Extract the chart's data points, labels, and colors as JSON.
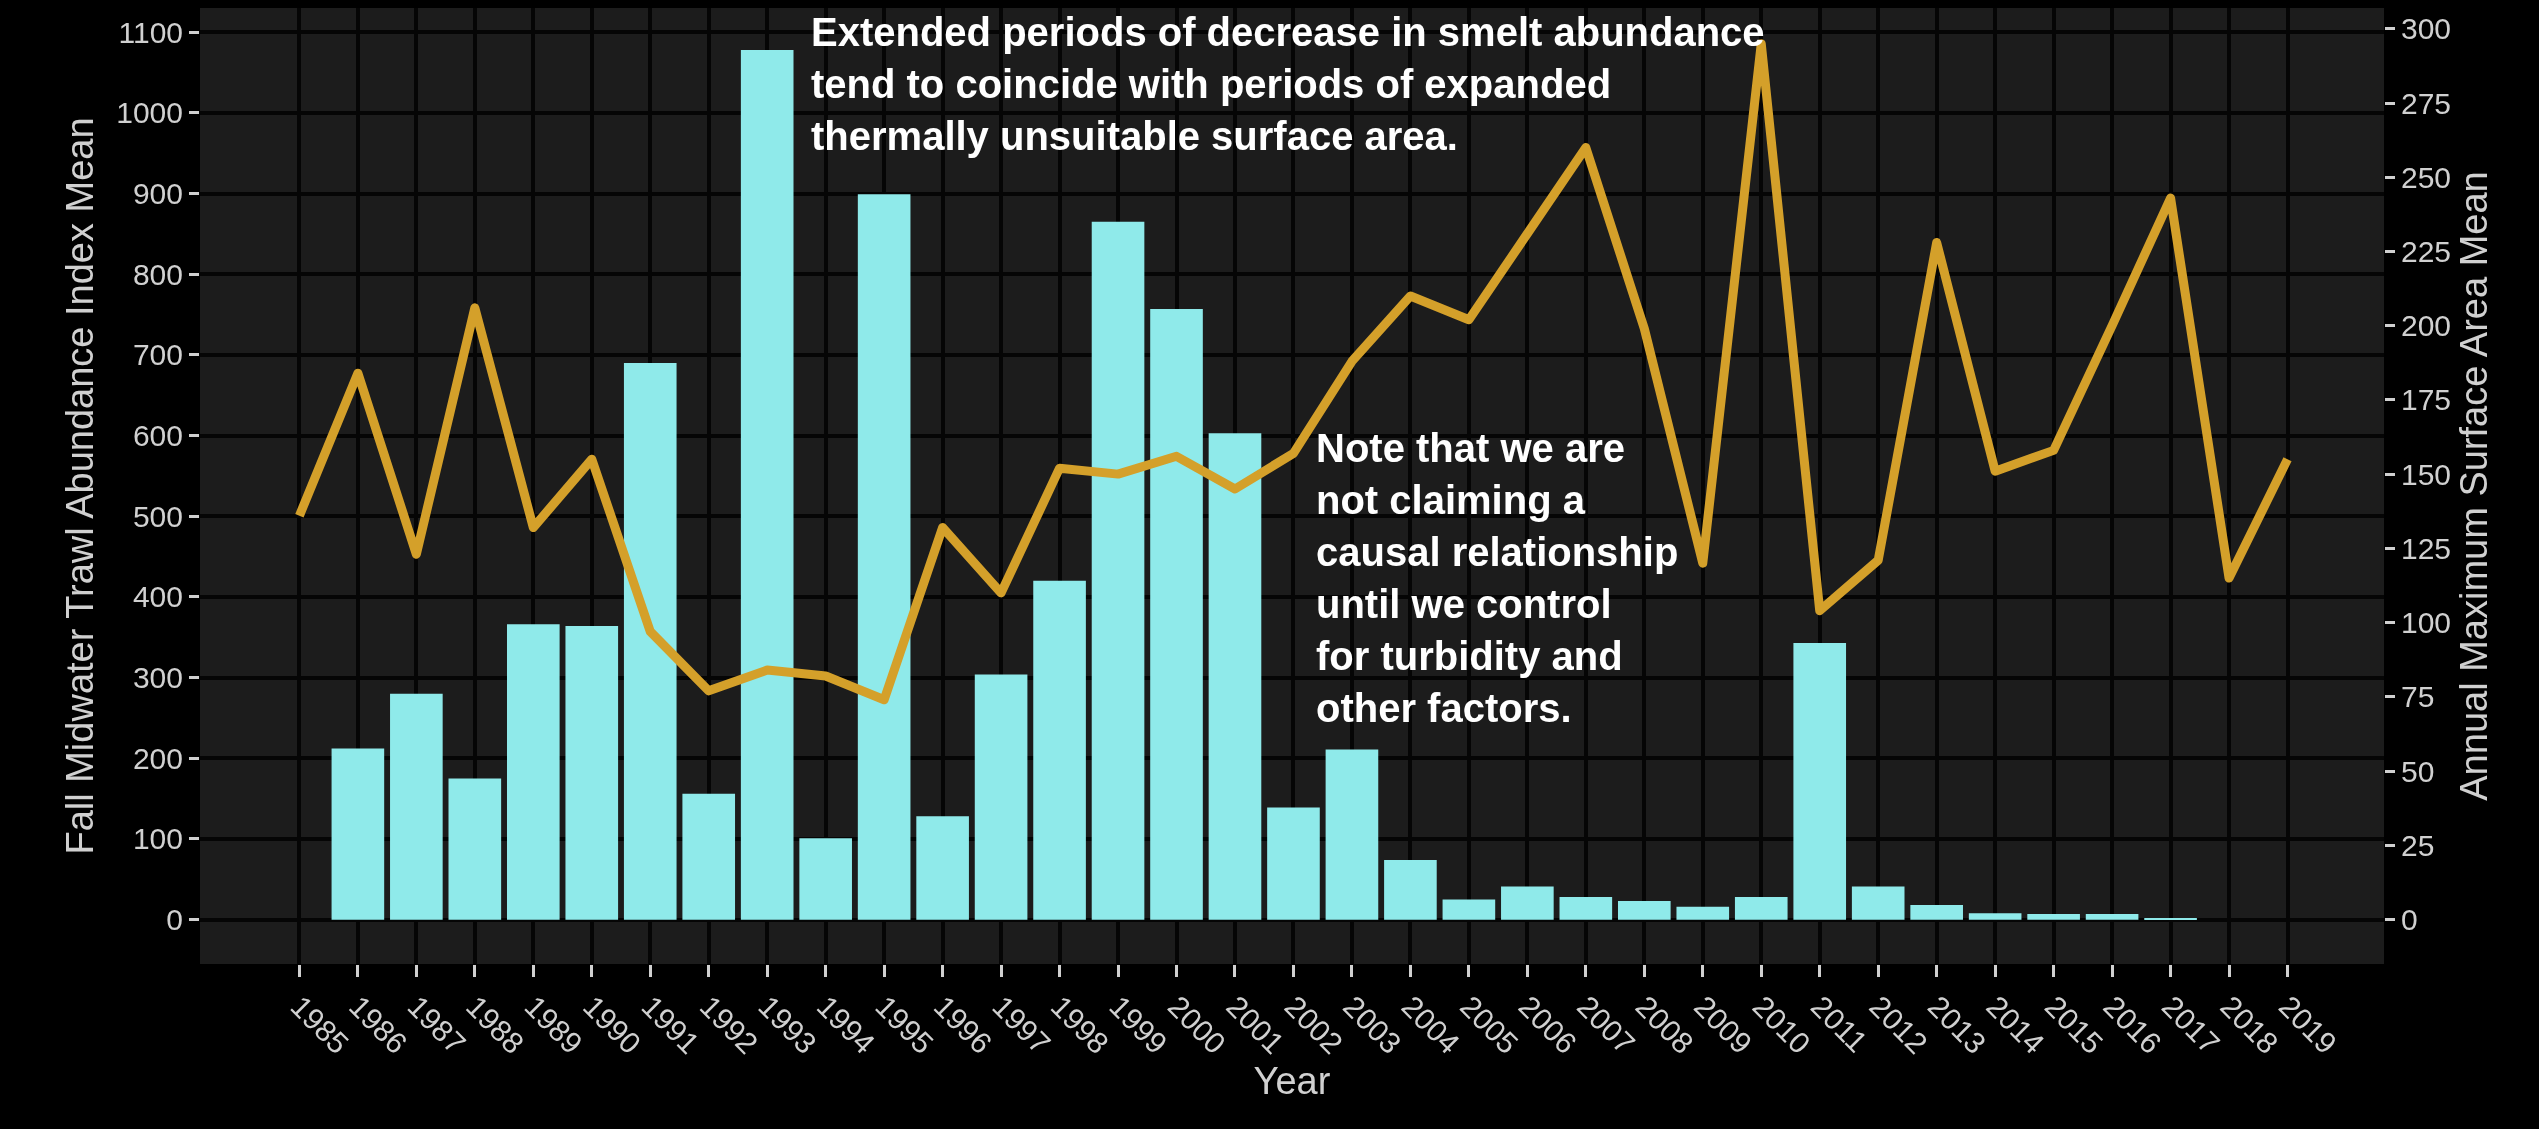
{
  "chart_data": {
    "type": "bar",
    "xlabel": "Year",
    "ylabel": "Fall Midwater Trawl Abundance Index Mean",
    "y2label": "Annual Maximum Surface Area Mean",
    "categories": [
      "1985",
      "1986",
      "1987",
      "1988",
      "1989",
      "1990",
      "1991",
      "1992",
      "1993",
      "1994",
      "1995",
      "1996",
      "1997",
      "1998",
      "1999",
      "2000",
      "2001",
      "2002",
      "2003",
      "2004",
      "2005",
      "2006",
      "2007",
      "2008",
      "2009",
      "2010",
      "2011",
      "2012",
      "2013",
      "2014",
      "2015",
      "2016",
      "2017",
      "2018",
      "2019"
    ],
    "series": [
      {
        "color": "#8feaea",
        "values": [
          null,
          212,
          280,
          175,
          366,
          364,
          690,
          156,
          1078,
          101,
          899,
          128,
          304,
          420,
          865,
          757,
          603,
          139,
          211,
          74,
          25,
          41,
          28,
          23,
          16,
          28,
          343,
          41,
          18,
          8,
          7,
          7,
          1,
          null,
          null
        ]
      },
      {
        "type": "line",
        "axis": "y2",
        "color": "#d4a02a",
        "values": [
          136,
          184,
          123,
          206,
          132,
          155,
          97,
          77,
          84,
          82,
          74,
          132,
          110,
          152,
          150,
          156,
          145,
          157,
          188,
          210,
          202,
          231,
          260,
          199,
          120,
          295,
          104,
          121,
          228,
          151,
          158,
          200,
          243,
          115,
          155
        ]
      }
    ],
    "ylim": [
      -55,
      1130
    ],
    "yticks": [
      0,
      100,
      200,
      300,
      400,
      500,
      600,
      700,
      800,
      900,
      1000,
      1100
    ],
    "y2lim": [
      -15,
      307
    ],
    "y2ticks": [
      0,
      25,
      50,
      75,
      100,
      125,
      150,
      175,
      200,
      225,
      250,
      275,
      300
    ],
    "grid": true,
    "marker": "none",
    "line_style": "solid",
    "annotations": [
      "Extended periods of decrease in smelt abundance tend to coincide with periods of expanded thermally unsuitable surface area.",
      "Note that we are not claiming a causal relationship until we control for turbidity and other factors."
    ]
  }
}
